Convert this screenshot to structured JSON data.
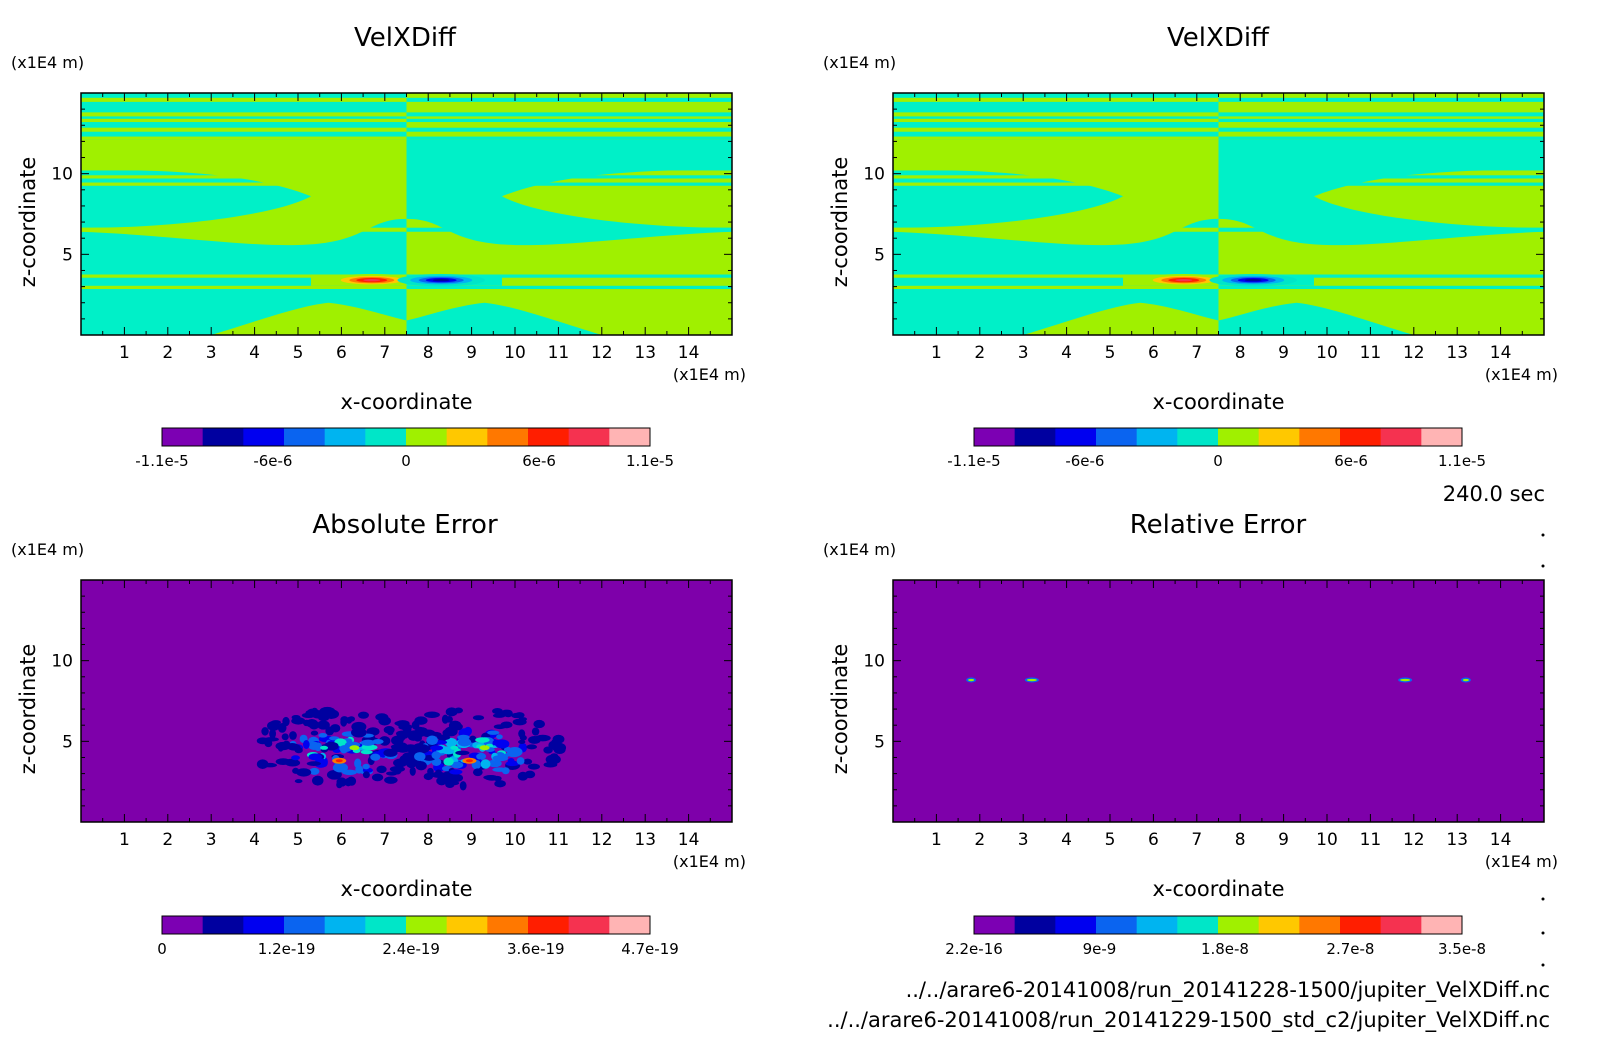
{
  "time_label": "240.0 sec",
  "footer": {
    "file1": "../../arare6-20141008/run_20141228-1500/jupiter_VelXDiff.nc",
    "file2": "../../arare6-20141008/run_20141229-1500_std_c2/jupiter_VelXDiff.nc"
  },
  "chart_data": [
    {
      "type": "heatmap",
      "title": "VelXDiff",
      "xlabel": "x-coordinate",
      "ylabel": "z-coordinate",
      "x_unit": "(x1E4 m)",
      "y_unit": "(x1E4 m)",
      "xlim": [
        0,
        15
      ],
      "ylim": [
        0,
        15
      ],
      "x_ticks": [
        1,
        2,
        3,
        4,
        5,
        6,
        7,
        8,
        9,
        10,
        11,
        12,
        13,
        14
      ],
      "y_ticks": [
        5,
        10
      ],
      "colorbar": {
        "min": -1.1e-05,
        "max": 1.1e-05,
        "levels": 11,
        "tick_labels": [
          "-1.1e-5",
          "-6e-6",
          "0",
          "6e-6",
          "1.1e-5"
        ],
        "tick_values": [
          -1.1e-05,
          -6e-06,
          0,
          6e-06,
          1.1e-05
        ]
      },
      "features": "alternating horizontal bands of small negative / small positive values, sign flips at x=7.5; extrema near z=3.4 at x=6.7 (positive) and x=8.3 (negative)"
    },
    {
      "type": "heatmap",
      "title": "VelXDiff",
      "xlabel": "x-coordinate",
      "ylabel": "z-coordinate",
      "x_unit": "(x1E4 m)",
      "y_unit": "(x1E4 m)",
      "xlim": [
        0,
        15
      ],
      "ylim": [
        0,
        15
      ],
      "x_ticks": [
        1,
        2,
        3,
        4,
        5,
        6,
        7,
        8,
        9,
        10,
        11,
        12,
        13,
        14
      ],
      "y_ticks": [
        5,
        10
      ],
      "colorbar": {
        "min": -1.1e-05,
        "max": 1.1e-05,
        "levels": 11,
        "tick_labels": [
          "-1.1e-5",
          "-6e-6",
          "0",
          "6e-6",
          "1.1e-5"
        ],
        "tick_values": [
          -1.1e-05,
          -6e-06,
          0,
          6e-06,
          1.1e-05
        ]
      },
      "features": "identical to first panel"
    },
    {
      "type": "heatmap",
      "title": "Absolute Error",
      "xlabel": "x-coordinate",
      "ylabel": "z-coordinate",
      "x_unit": "(x1E4 m)",
      "y_unit": "(x1E4 m)",
      "xlim": [
        0,
        15
      ],
      "ylim": [
        0,
        15
      ],
      "x_ticks": [
        1,
        2,
        3,
        4,
        5,
        6,
        7,
        8,
        9,
        10,
        11,
        12,
        13,
        14
      ],
      "y_ticks": [
        5,
        10
      ],
      "colorbar": {
        "min": 0,
        "max": 4.7e-19,
        "levels": 12,
        "tick_labels": [
          "0",
          "1.2e-19",
          "2.4e-19",
          "3.6e-19",
          "4.7e-19"
        ],
        "tick_values": [
          0,
          1.2e-19,
          2.4e-19,
          3.6e-19,
          4.7e-19
        ]
      },
      "features": "mostly 0; two noisy clusters centered near (6,4.5) and (9,4.5), peak ~4.7e-19 near (6,3.8) and (8.8,3.8)"
    },
    {
      "type": "heatmap",
      "title": "Relative Error",
      "xlabel": "x-coordinate",
      "ylabel": "z-coordinate",
      "x_unit": "(x1E4 m)",
      "y_unit": "(x1E4 m)",
      "xlim": [
        0,
        15
      ],
      "ylim": [
        0,
        15
      ],
      "x_ticks": [
        1,
        2,
        3,
        4,
        5,
        6,
        7,
        8,
        9,
        10,
        11,
        12,
        13,
        14
      ],
      "y_ticks": [
        5,
        10
      ],
      "colorbar": {
        "min": 2.2e-16,
        "max": 3.5e-08,
        "levels": 12,
        "tick_labels": [
          "2.2e-16",
          "9e-9",
          "1.8e-8",
          "2.7e-8",
          "3.5e-8"
        ],
        "tick_values": [
          2.2e-16,
          9e-09,
          1.8e-08,
          2.7e-08,
          3.5e-08
        ]
      },
      "features": "essentially minimum everywhere; four tiny spots near z=8.8 at x=1.8, 3.2, 11.8, 13.2"
    }
  ],
  "palettes": {
    "diverging": [
      "#7c00b3",
      "#0000a0",
      "#0000f0",
      "#0a64f0",
      "#00b4f0",
      "#00e6c8",
      "#a0f000",
      "#ffc800",
      "#ff7800",
      "#ff1e00",
      "#f53250",
      "#ffb4b4"
    ],
    "sequential": [
      "#7c00b3",
      "#0000a0",
      "#0000f0",
      "#0a64f0",
      "#00b4f0",
      "#00e6c8",
      "#a0f000",
      "#ffc800",
      "#ff7800",
      "#ff1e00",
      "#f53250",
      "#ffb4b4"
    ],
    "background_field": "#7e00aa",
    "pos_band": "#a0f000",
    "neg_band": "#00f0c8"
  }
}
